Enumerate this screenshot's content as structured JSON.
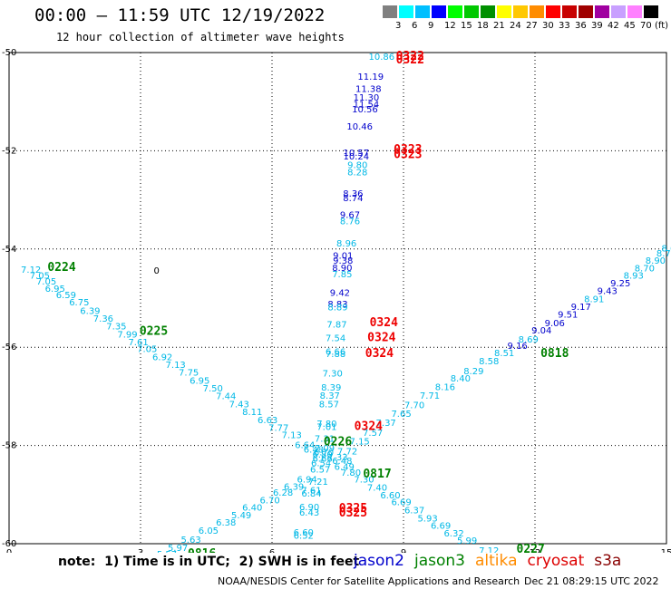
{
  "header": {
    "title": "00:00 – 11:59 UTC 12/19/2022",
    "subtitle": "12 hour collection of altimeter wave heights"
  },
  "scale": {
    "unit": "(ft)",
    "colors": [
      "#808080",
      "#00ffff",
      "#00bfff",
      "#0000ff",
      "#00ff00",
      "#00c800",
      "#009000",
      "#ffff00",
      "#ffc800",
      "#ff8c00",
      "#ff0000",
      "#c80000",
      "#a00000",
      "#a000a0",
      "#c8a0ff",
      "#ff80ff",
      "#000000"
    ],
    "labels": [
      "3",
      "6",
      "9",
      "12",
      "15",
      "18",
      "21",
      "24",
      "27",
      "30",
      "33",
      "36",
      "39",
      "42",
      "45",
      "70"
    ]
  },
  "footer": {
    "note": "note:  1) Time is in UTC;  2) SWH is in feet",
    "credit": "NOAA/NESDIS Center for Satellite Applications and Research",
    "stamp": "Dec 21 08:29:15 UTC 2022"
  },
  "missions": [
    {
      "name": "jason2",
      "color": "#0000cc"
    },
    {
      "name": "jason3",
      "color": "#008000"
    },
    {
      "name": "altika",
      "color": "#ff8c00"
    },
    {
      "name": "cryosat",
      "color": "#dd0000"
    },
    {
      "name": "s3a",
      "color": "#880000"
    }
  ],
  "chart_data": {
    "type": "scatter",
    "title": "12 hour collection of altimeter wave heights",
    "xlim": [
      0,
      15
    ],
    "ylim": [
      -60,
      -50
    ],
    "x_ticks": [
      0,
      3,
      6,
      9,
      12,
      15
    ],
    "y_ticks": [
      -50,
      -52,
      -54,
      -56,
      -58,
      -60
    ],
    "y_tick_labels": [
      "-50",
      "-52",
      "-54",
      "-56",
      "-58",
      "-60"
    ],
    "grid": true,
    "colors": {
      "light": "#00b8e6",
      "dark": "#0000cc",
      "time": "#008000",
      "time_red": "#ee0000"
    },
    "stray_label": {
      "x": 3.3,
      "y": -54.5,
      "text": "0"
    },
    "points": [
      {
        "x": 8.5,
        "y": -50.15,
        "t": "10.86",
        "c": "light"
      },
      {
        "x": 8.25,
        "y": -50.55,
        "t": "11.19",
        "c": "dark"
      },
      {
        "x": 8.2,
        "y": -50.8,
        "t": "11.38",
        "c": "dark"
      },
      {
        "x": 8.15,
        "y": -50.98,
        "t": "11.30",
        "c": "dark"
      },
      {
        "x": 8.15,
        "y": -51.12,
        "t": "11.54",
        "c": "dark"
      },
      {
        "x": 8.12,
        "y": -51.22,
        "t": "10.56",
        "c": "dark"
      },
      {
        "x": 8.0,
        "y": -51.57,
        "t": "10.46",
        "c": "dark"
      },
      {
        "x": 7.92,
        "y": -52.1,
        "t": "10.57",
        "c": "dark"
      },
      {
        "x": 7.92,
        "y": -52.18,
        "t": "10.24",
        "c": "dark"
      },
      {
        "x": 7.95,
        "y": -52.35,
        "t": "9.80",
        "c": "light"
      },
      {
        "x": 7.95,
        "y": -52.5,
        "t": "8.28",
        "c": "light"
      },
      {
        "x": 7.85,
        "y": -52.93,
        "t": "8.36",
        "c": "dark"
      },
      {
        "x": 7.85,
        "y": -53.03,
        "t": "8.74",
        "c": "dark"
      },
      {
        "x": 7.78,
        "y": -53.37,
        "t": "9.67",
        "c": "dark"
      },
      {
        "x": 7.78,
        "y": -53.5,
        "t": "8.76",
        "c": "light"
      },
      {
        "x": 7.7,
        "y": -53.95,
        "t": "8.96",
        "c": "light"
      },
      {
        "x": 7.62,
        "y": -54.2,
        "t": "9.01",
        "c": "dark"
      },
      {
        "x": 7.62,
        "y": -54.3,
        "t": "9.38",
        "c": "dark"
      },
      {
        "x": 7.6,
        "y": -54.45,
        "t": "8.90",
        "c": "dark"
      },
      {
        "x": 7.6,
        "y": -54.58,
        "t": "7.85",
        "c": "light"
      },
      {
        "x": 7.55,
        "y": -54.95,
        "t": "9.42",
        "c": "dark"
      },
      {
        "x": 7.5,
        "y": -55.18,
        "t": "8.83",
        "c": "dark"
      },
      {
        "x": 7.5,
        "y": -55.25,
        "t": "8.89",
        "c": "light"
      },
      {
        "x": 7.48,
        "y": -55.6,
        "t": "7.87",
        "c": "light"
      },
      {
        "x": 7.45,
        "y": -55.88,
        "t": "7.54",
        "c": "light"
      },
      {
        "x": 7.45,
        "y": -56.15,
        "t": "6.66",
        "c": "light"
      },
      {
        "x": 7.45,
        "y": -56.2,
        "t": "7.88",
        "c": "light"
      },
      {
        "x": 7.38,
        "y": -56.6,
        "t": "7.30",
        "c": "light"
      },
      {
        "x": 7.35,
        "y": -56.88,
        "t": "8.39",
        "c": "light"
      },
      {
        "x": 7.32,
        "y": -57.05,
        "t": "8.37",
        "c": "light"
      },
      {
        "x": 7.3,
        "y": -57.22,
        "t": "8.57",
        "c": "light"
      },
      {
        "x": 7.25,
        "y": -57.62,
        "t": "7.80",
        "c": "light"
      },
      {
        "x": 7.25,
        "y": -57.68,
        "t": "7.01",
        "c": "light"
      },
      {
        "x": 7.2,
        "y": -57.92,
        "t": "7.31",
        "c": "light"
      },
      {
        "x": 7.2,
        "y": -58.12,
        "t": "7.09",
        "c": "light"
      },
      {
        "x": 7.18,
        "y": -58.2,
        "t": "6.70",
        "c": "light"
      },
      {
        "x": 7.15,
        "y": -58.25,
        "t": "6.80",
        "c": "light"
      },
      {
        "x": 7.15,
        "y": -58.33,
        "t": "6.66",
        "c": "light"
      },
      {
        "x": 7.12,
        "y": -58.42,
        "t": "6.54",
        "c": "light"
      },
      {
        "x": 7.1,
        "y": -58.55,
        "t": "6.57",
        "c": "light"
      },
      {
        "x": 7.05,
        "y": -58.8,
        "t": "7.21",
        "c": "light"
      },
      {
        "x": 6.9,
        "y": -58.98,
        "t": "7.61",
        "c": "light"
      },
      {
        "x": 6.9,
        "y": -59.04,
        "t": "6.84",
        "c": "light"
      },
      {
        "x": 6.85,
        "y": -59.32,
        "t": "6.90",
        "c": "light"
      },
      {
        "x": 6.85,
        "y": -59.43,
        "t": "6.43",
        "c": "light"
      },
      {
        "x": 6.72,
        "y": -59.83,
        "t": "6.60",
        "c": "light"
      },
      {
        "x": 6.72,
        "y": -59.9,
        "t": "6.52",
        "c": "light"
      },
      {
        "x": 0.5,
        "y": -54.48,
        "t": "7.12",
        "c": "light"
      },
      {
        "x": 0.7,
        "y": -54.6,
        "t": "7.05",
        "c": "light"
      },
      {
        "x": 0.85,
        "y": -54.72,
        "t": "7.05",
        "c": "light"
      },
      {
        "x": 1.05,
        "y": -54.87,
        "t": "6.95",
        "c": "light"
      },
      {
        "x": 1.3,
        "y": -55.0,
        "t": "6.59",
        "c": "light"
      },
      {
        "x": 1.6,
        "y": -55.15,
        "t": "6.75",
        "c": "light"
      },
      {
        "x": 1.85,
        "y": -55.32,
        "t": "6.39",
        "c": "light"
      },
      {
        "x": 2.15,
        "y": -55.48,
        "t": "7.36",
        "c": "light"
      },
      {
        "x": 2.45,
        "y": -55.64,
        "t": "7.35",
        "c": "light"
      },
      {
        "x": 2.7,
        "y": -55.8,
        "t": "7.99",
        "c": "light"
      },
      {
        "x": 2.95,
        "y": -55.96,
        "t": "7.61",
        "c": "light"
      },
      {
        "x": 3.15,
        "y": -56.1,
        "t": "7.05",
        "c": "light"
      },
      {
        "x": 3.5,
        "y": -56.26,
        "t": "6.92",
        "c": "light"
      },
      {
        "x": 3.8,
        "y": -56.42,
        "t": "7.13",
        "c": "light"
      },
      {
        "x": 4.1,
        "y": -56.58,
        "t": "7.75",
        "c": "light"
      },
      {
        "x": 4.35,
        "y": -56.74,
        "t": "6.95",
        "c": "light"
      },
      {
        "x": 4.65,
        "y": -56.9,
        "t": "7.50",
        "c": "light"
      },
      {
        "x": 4.95,
        "y": -57.06,
        "t": "7.44",
        "c": "light"
      },
      {
        "x": 5.25,
        "y": -57.22,
        "t": "7.43",
        "c": "light"
      },
      {
        "x": 5.55,
        "y": -57.38,
        "t": "8.11",
        "c": "light"
      },
      {
        "x": 5.9,
        "y": -57.55,
        "t": "6.63",
        "c": "light"
      },
      {
        "x": 6.15,
        "y": -57.7,
        "t": "7.77",
        "c": "light"
      },
      {
        "x": 6.45,
        "y": -57.85,
        "t": "7.13",
        "c": "light"
      },
      {
        "x": 6.75,
        "y": -58.05,
        "t": "6.64",
        "c": "light"
      },
      {
        "x": 6.95,
        "y": -58.15,
        "t": "6.48",
        "c": "light"
      },
      {
        "x": 7.6,
        "y": -58.38,
        "t": "6.48",
        "c": "light"
      },
      {
        "x": 7.65,
        "y": -58.5,
        "t": "6.49",
        "c": "light"
      },
      {
        "x": 7.8,
        "y": -58.62,
        "t": "7.80",
        "c": "light"
      },
      {
        "x": 8.1,
        "y": -58.75,
        "t": "7.30",
        "c": "light"
      },
      {
        "x": 8.4,
        "y": -58.92,
        "t": "7.40",
        "c": "light"
      },
      {
        "x": 8.7,
        "y": -59.08,
        "t": "6.60",
        "c": "light"
      },
      {
        "x": 8.95,
        "y": -59.22,
        "t": "6.69",
        "c": "light"
      },
      {
        "x": 9.25,
        "y": -59.38,
        "t": "6.37",
        "c": "light"
      },
      {
        "x": 9.55,
        "y": -59.55,
        "t": "5.93",
        "c": "light"
      },
      {
        "x": 9.85,
        "y": -59.7,
        "t": "6.69",
        "c": "light"
      },
      {
        "x": 10.15,
        "y": -59.85,
        "t": "6.32",
        "c": "light"
      },
      {
        "x": 10.45,
        "y": -60.0,
        "t": "5.99",
        "c": "light"
      },
      {
        "x": 10.95,
        "y": -60.2,
        "t": "7.12",
        "c": "light"
      },
      {
        "x": 11.25,
        "y": -60.32,
        "t": "6.51",
        "c": "light"
      },
      {
        "x": 3.6,
        "y": -60.28,
        "t": "5.57",
        "c": "light"
      },
      {
        "x": 3.85,
        "y": -60.15,
        "t": "5.97",
        "c": "light"
      },
      {
        "x": 4.15,
        "y": -59.98,
        "t": "5.63",
        "c": "light"
      },
      {
        "x": 4.55,
        "y": -59.8,
        "t": "6.05",
        "c": "light"
      },
      {
        "x": 4.95,
        "y": -59.63,
        "t": "6.38",
        "c": "light"
      },
      {
        "x": 5.3,
        "y": -59.48,
        "t": "5.49",
        "c": "light"
      },
      {
        "x": 5.55,
        "y": -59.33,
        "t": "6.40",
        "c": "light"
      },
      {
        "x": 5.95,
        "y": -59.18,
        "t": "6.70",
        "c": "light"
      },
      {
        "x": 6.25,
        "y": -59.02,
        "t": "6.28",
        "c": "light"
      },
      {
        "x": 6.5,
        "y": -58.9,
        "t": "6.39",
        "c": "light"
      },
      {
        "x": 6.8,
        "y": -58.75,
        "t": "6.94",
        "c": "light"
      },
      {
        "x": 7.5,
        "y": -58.3,
        "t": "7.33",
        "c": "light"
      },
      {
        "x": 7.72,
        "y": -58.18,
        "t": "7.72",
        "c": "light"
      },
      {
        "x": 8.0,
        "y": -57.98,
        "t": "7.15",
        "c": "light"
      },
      {
        "x": 8.3,
        "y": -57.8,
        "t": "7.57",
        "c": "light"
      },
      {
        "x": 8.6,
        "y": -57.6,
        "t": "7.37",
        "c": "light"
      },
      {
        "x": 8.95,
        "y": -57.42,
        "t": "7.65",
        "c": "light"
      },
      {
        "x": 9.25,
        "y": -57.24,
        "t": "7.70",
        "c": "light"
      },
      {
        "x": 9.6,
        "y": -57.05,
        "t": "7.71",
        "c": "light"
      },
      {
        "x": 9.95,
        "y": -56.87,
        "t": "8.16",
        "c": "light"
      },
      {
        "x": 10.3,
        "y": -56.7,
        "t": "8.40",
        "c": "light"
      },
      {
        "x": 10.6,
        "y": -56.55,
        "t": "8.29",
        "c": "light"
      },
      {
        "x": 10.95,
        "y": -56.35,
        "t": "8.58",
        "c": "light"
      },
      {
        "x": 11.3,
        "y": -56.18,
        "t": "8.51",
        "c": "light"
      },
      {
        "x": 11.6,
        "y": -56.03,
        "t": "9.16",
        "c": "dark"
      },
      {
        "x": 11.85,
        "y": -55.9,
        "t": "8.69",
        "c": "light"
      },
      {
        "x": 12.15,
        "y": -55.72,
        "t": "9.04",
        "c": "dark"
      },
      {
        "x": 12.45,
        "y": -55.57,
        "t": "9.06",
        "c": "dark"
      },
      {
        "x": 12.75,
        "y": -55.4,
        "t": "9.51",
        "c": "dark"
      },
      {
        "x": 13.05,
        "y": -55.24,
        "t": "9.17",
        "c": "dark"
      },
      {
        "x": 13.35,
        "y": -55.08,
        "t": "8.91",
        "c": "light"
      },
      {
        "x": 13.65,
        "y": -54.92,
        "t": "9.43",
        "c": "dark"
      },
      {
        "x": 13.95,
        "y": -54.76,
        "t": "9.25",
        "c": "dark"
      },
      {
        "x": 14.25,
        "y": -54.6,
        "t": "8.93",
        "c": "light"
      },
      {
        "x": 14.5,
        "y": -54.46,
        "t": "8.70",
        "c": "light"
      },
      {
        "x": 14.75,
        "y": -54.3,
        "t": "8.90",
        "c": "light"
      },
      {
        "x": 15.0,
        "y": -54.15,
        "t": "8.78",
        "c": "light"
      },
      {
        "x": 15.05,
        "y": -54.05,
        "t": "8.6",
        "c": "light"
      }
    ],
    "times": [
      {
        "x": 9.15,
        "y": -50.15,
        "t": "0322",
        "c": "time_red"
      },
      {
        "x": 9.15,
        "y": -50.22,
        "t": "0322",
        "c": "time_red"
      },
      {
        "x": 9.1,
        "y": -52.05,
        "t": "0323",
        "c": "time_red"
      },
      {
        "x": 9.1,
        "y": -52.15,
        "t": "0323",
        "c": "time_red"
      },
      {
        "x": 8.55,
        "y": -55.57,
        "t": "0324",
        "c": "time_red"
      },
      {
        "x": 8.5,
        "y": -55.88,
        "t": "0324",
        "c": "time_red"
      },
      {
        "x": 8.45,
        "y": -56.2,
        "t": "0324",
        "c": "time_red"
      },
      {
        "x": 8.2,
        "y": -57.68,
        "t": "0324",
        "c": "time_red"
      },
      {
        "x": 7.85,
        "y": -59.35,
        "t": "0325",
        "c": "time_red"
      },
      {
        "x": 7.85,
        "y": -59.45,
        "t": "0325",
        "c": "time_red"
      },
      {
        "x": 1.2,
        "y": -54.45,
        "t": "0224",
        "c": "time"
      },
      {
        "x": 3.3,
        "y": -55.75,
        "t": "0225",
        "c": "time"
      },
      {
        "x": 7.5,
        "y": -58.0,
        "t": "0226",
        "c": "time"
      },
      {
        "x": 8.4,
        "y": -58.65,
        "t": "0817",
        "c": "time"
      },
      {
        "x": 12.45,
        "y": -56.2,
        "t": "0818",
        "c": "time"
      },
      {
        "x": 11.9,
        "y": -60.18,
        "t": "0227",
        "c": "time"
      },
      {
        "x": 4.4,
        "y": -60.28,
        "t": "0816",
        "c": "time"
      }
    ]
  }
}
